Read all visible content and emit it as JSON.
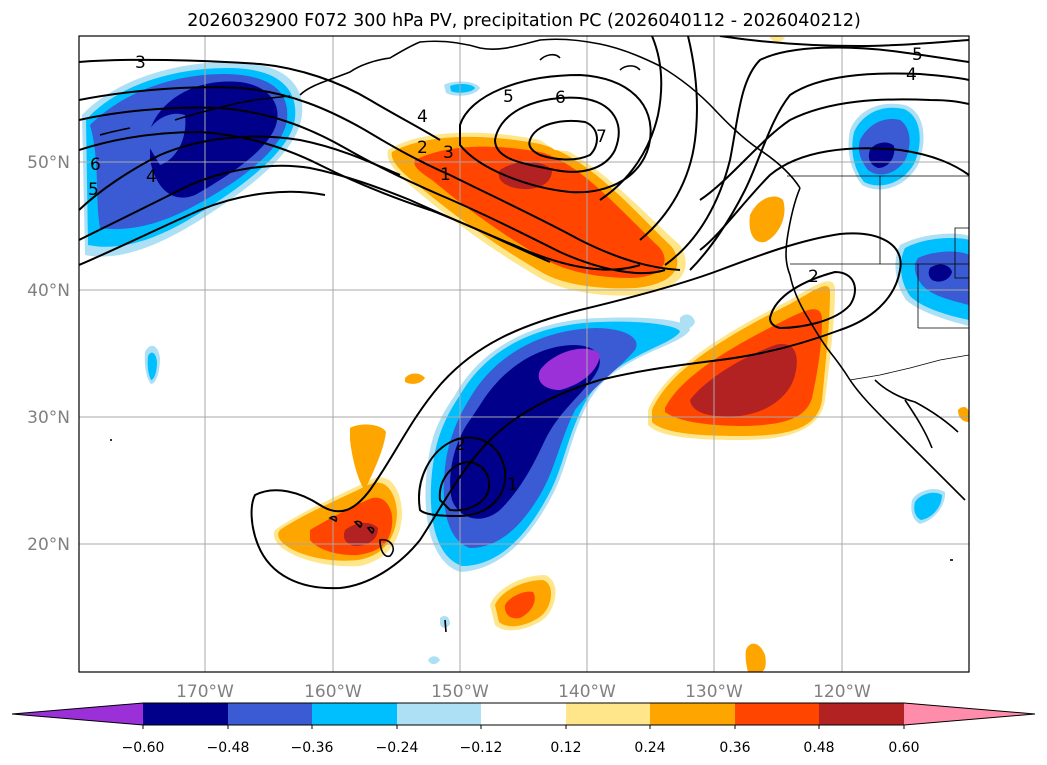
{
  "title": "2026032900 F072 300 hPa PV, precipitation PC (2026040112 - 2026040212)",
  "latitude_labels": [
    "50°N",
    "40°N",
    "30°N",
    "20°N"
  ],
  "longitude_labels": [
    "170°W",
    "160°W",
    "150°W",
    "140°W",
    "130°W",
    "120°W"
  ],
  "contour_labels": [
    "3",
    "5",
    "6",
    "7",
    "4",
    "2",
    "3",
    "1",
    "5",
    "6",
    "4",
    "5",
    "4",
    "2",
    "2",
    "1"
  ],
  "colorbar": {
    "tick_labels": [
      "−0.60",
      "−0.48",
      "−0.36",
      "−0.24",
      "−0.12",
      "0.12",
      "0.24",
      "0.36",
      "0.48",
      "0.60"
    ],
    "colors": [
      "#9b30d9",
      "#00008b",
      "#3a5bd3",
      "#00bfff",
      "#ade0f5",
      "#ffffff",
      "#ffe68a",
      "#ffa500",
      "#ff4500",
      "#b22222",
      "#ff8caa"
    ]
  },
  "colors": {
    "grid": "#a8a8a8",
    "axis_label": "#808080",
    "contour": "#000000"
  }
}
